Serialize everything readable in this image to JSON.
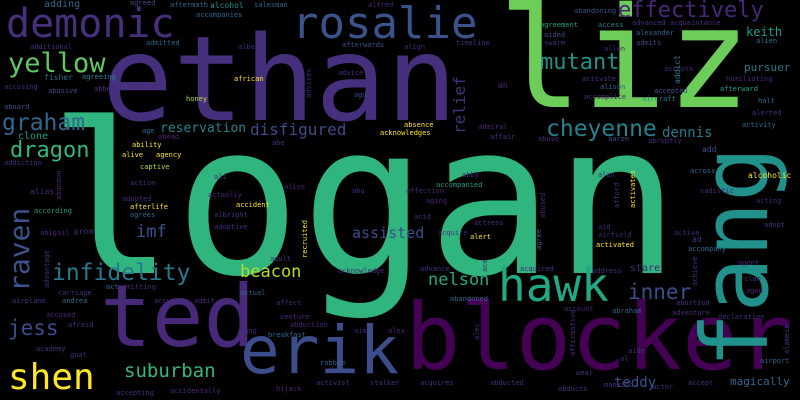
{
  "words": {
    "logan": "logan",
    "ethan": "ethan",
    "liz": "liz",
    "blocker": "blocker",
    "ted": "ted",
    "fang": "fang",
    "erik": "erik",
    "hawk": "hawk",
    "demonic": "demonic",
    "rosalie": "rosalie",
    "effectively": "effectively",
    "yellow": "yellow",
    "mutant": "mutant",
    "graham": "graham",
    "dragon": "dragon",
    "cheyenne": "cheyenne",
    "raven": "raven",
    "infidelity": "infidelity",
    "shen": "shen",
    "jess": "jess",
    "suburban": "suburban",
    "nelson": "nelson",
    "inner": "inner",
    "beacon": "beacon",
    "imf": "imf",
    "disfigured": "disfigured",
    "reservation": "reservation",
    "assisted": "assisted",
    "relief": "relief",
    "dennis": "dennis",
    "teddy": "teddy",
    "magically": "magically",
    "keith": "keith",
    "pursuer": "pursuer",
    "adding": "adding",
    "agreed": "agreed",
    "aftermath": "aftermath",
    "alcohol": "alcohol",
    "salesman": "salesman",
    "alfred": "alfred",
    "abandoning": "abandoning",
    "agreement": "agreement",
    "access": "access",
    "advanced_acquaintance": "advanced acquaintance",
    "alexander": "alexander",
    "aided": "aided",
    "admits": "admits",
    "swarm": "swarm",
    "allen": "allen",
    "alien": "alien",
    "accompanies": "accompanies",
    "additional": "additional",
    "admitted": "admitted",
    "albert": "albert",
    "afterwards": "afterwards",
    "align": "align",
    "timeline": "timeline",
    "fisher": "fisher",
    "agreeing": "agreeing",
    "accusing": "accusing",
    "abusive": "abusive",
    "abbey": "abbey",
    "aboard": "aboard",
    "clone": "clone",
    "honey": "honey",
    "african": "african",
    "advises": "advises",
    "advice": "advice",
    "ago": "ago",
    "ah": "ah",
    "activate": "activate",
    "alison": "alison",
    "accomplice": "accomplice",
    "accepts": "accepts",
    "addict": "addict",
    "accepted": "accepted",
    "aircraft": "aircraft",
    "humiliating": "humiliating",
    "afterward": "afterward",
    "halt": "halt",
    "alerted": "alerted",
    "activity": "activity",
    "absence": "absence",
    "acknowledges": "acknowledges",
    "admiral": "admiral",
    "affair": "affair",
    "abuse": "abuse",
    "aaron": "aaron",
    "abruptly": "abruptly",
    "add": "add",
    "alcoholic": "alcoholic",
    "age": "age",
    "ahead": "ahead",
    "abe": "abe",
    "ability": "ability",
    "alive": "alive",
    "agency": "agency",
    "captive": "captive",
    "action": "action",
    "alias": "alias",
    "addiction": "addiction",
    "abandon": "abandon",
    "according": "according",
    "prom": "prom",
    "adopted": "adopted",
    "afterlife": "afterlife",
    "agrees": "agrees",
    "ali": "ali",
    "actually": "actually",
    "albright": "albright",
    "accident": "accident",
    "adoptive": "adoptive",
    "alice": "alice",
    "abu": "abu",
    "affection": "affection",
    "accompanied": "accompanied",
    "aging": "aging",
    "abby": "abby",
    "acid": "acid",
    "actress": "actress",
    "alert": "alert",
    "abused": "abused",
    "agree": "agree",
    "alan": "alan",
    "afford": "afford",
    "activates": "activates",
    "aid": "aid",
    "airfield": "airfield",
    "activated": "activated",
    "across": "across",
    "sadistic": "sadistic",
    "acting": "acting",
    "ad": "ad",
    "accompany": "accompany",
    "adopt": "adopt",
    "active": "active",
    "agent": "agent",
    "clan": "clan",
    "aged": "aged",
    "abigail": "abigail",
    "advantage": "advantage",
    "carriage": "carriage",
    "airplane": "airplane",
    "andrea": "andrea",
    "act": "act",
    "admitting": "admitting",
    "alarm": "alarm",
    "accuses": "accuses",
    "admit": "admit",
    "actual": "actual",
    "adult": "adult",
    "acknowledge": "acknowledge",
    "advance": "advance",
    "ace": "ace",
    "acquired": "acquired",
    "address": "address",
    "stare": "stare",
    "achieve": "achieve",
    "abortion": "abortion",
    "adventure": "adventure",
    "declaration": "declaration",
    "alamein": "alamein",
    "afraid": "afraid",
    "accused": "accused",
    "affect": "affect",
    "venture": "venture",
    "abduction": "abduction",
    "abandoned": "abandoned",
    "account": "account",
    "abraham": "abraham",
    "academy": "academy",
    "goat": "goat",
    "aang": "aang",
    "breakfast": "breakfast",
    "aim": "aim",
    "alex": "alex",
    "alec": "alec",
    "aide": "aide",
    "al": "al",
    "airport": "airport",
    "robbie": "robbie",
    "wear": "wear",
    "accepting": "accepting",
    "accidentally": "accidentally",
    "hijack": "hijack",
    "activist": "activist",
    "stalker": "stalker",
    "acquires": "acquires",
    "abducted": "abducted",
    "abducts": "abducts",
    "mankind": "mankind",
    "actor": "actor",
    "accept": "accept",
    "acquire": "acquire",
    "recruited": "recruited",
    "affirmative": "affirmative"
  }
}
